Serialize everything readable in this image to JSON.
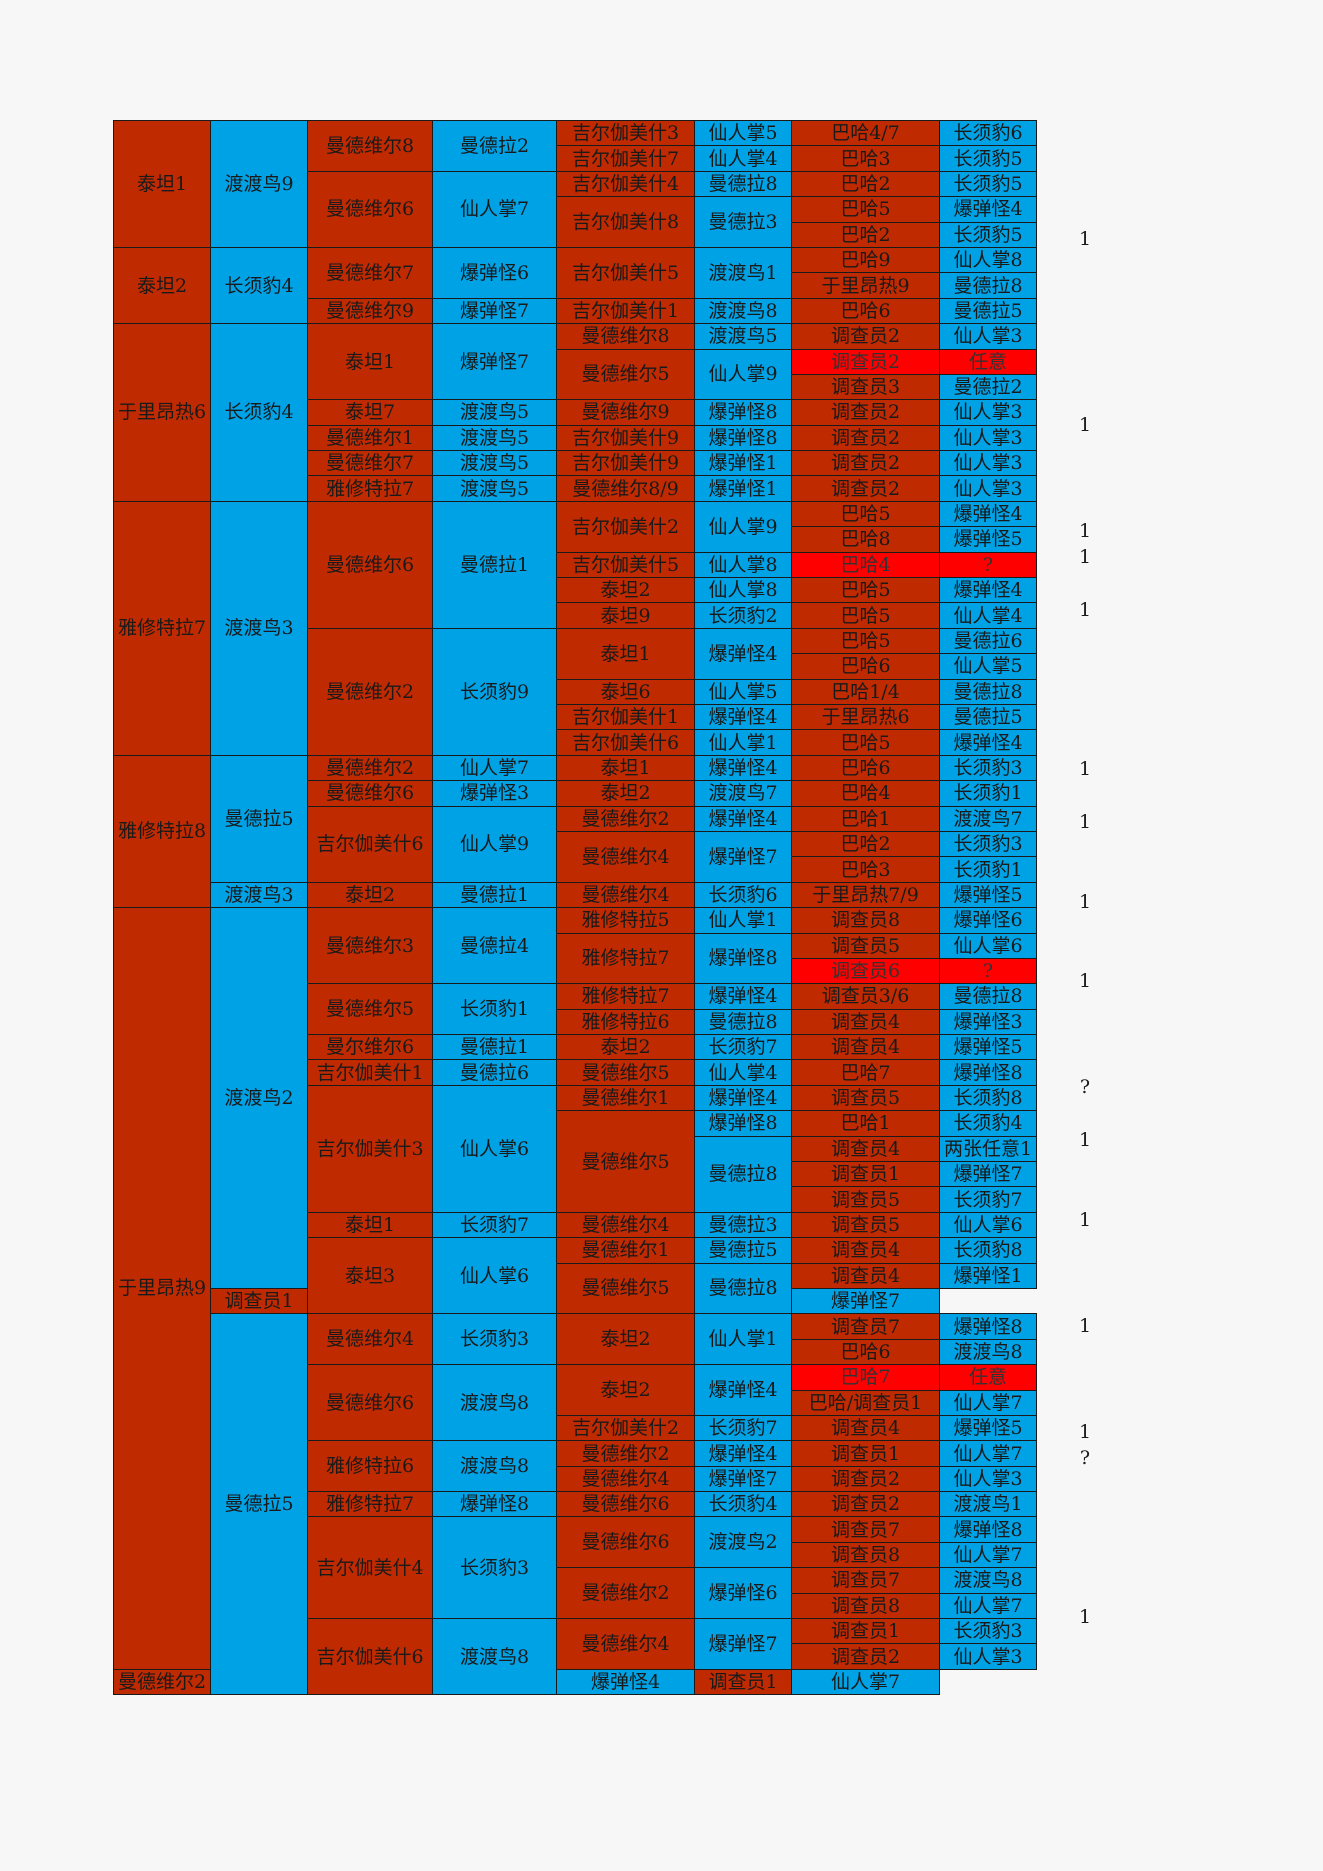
{
  "rows": [
    [
      {
        "t": "泰坦1",
        "rs": 5,
        "c": "r"
      },
      {
        "t": "渡渡鸟9",
        "rs": 5,
        "c": "b"
      },
      {
        "t": "曼德维尔8",
        "rs": 2,
        "c": "r"
      },
      {
        "t": "曼德拉2",
        "rs": 2,
        "c": "b"
      },
      {
        "t": "吉尔伽美什3",
        "c": "r"
      },
      {
        "t": "仙人掌5",
        "c": "b"
      },
      {
        "t": "巴哈4/7",
        "c": "r"
      },
      {
        "t": "长须豹6",
        "c": "b"
      }
    ],
    [
      {
        "t": "吉尔伽美什7",
        "c": "r"
      },
      {
        "t": "仙人掌4",
        "c": "b"
      },
      {
        "t": "巴哈3",
        "c": "r"
      },
      {
        "t": "长须豹5",
        "c": "b"
      }
    ],
    [
      {
        "t": "曼德维尔6",
        "rs": 3,
        "c": "r"
      },
      {
        "t": "仙人掌7",
        "rs": 3,
        "c": "b"
      },
      {
        "t": "吉尔伽美什4",
        "c": "r"
      },
      {
        "t": "曼德拉8",
        "c": "b"
      },
      {
        "t": "巴哈2",
        "c": "r"
      },
      {
        "t": "长须豹5",
        "c": "b"
      }
    ],
    [
      {
        "t": "吉尔伽美什8",
        "rs": 2,
        "c": "r"
      },
      {
        "t": "曼德拉3",
        "rs": 2,
        "c": "b"
      },
      {
        "t": "巴哈5",
        "c": "r"
      },
      {
        "t": "爆弹怪4",
        "c": "b"
      }
    ],
    [
      {
        "t": "巴哈2",
        "c": "r"
      },
      {
        "t": "长须豹5",
        "c": "b"
      }
    ],
    [
      {
        "t": "泰坦2",
        "rs": 3,
        "c": "r"
      },
      {
        "t": "长须豹4",
        "rs": 3,
        "c": "b"
      },
      {
        "t": "曼德维尔7",
        "rs": 2,
        "c": "r"
      },
      {
        "t": "爆弹怪6",
        "rs": 2,
        "c": "b"
      },
      {
        "t": "吉尔伽美什5",
        "rs": 2,
        "c": "r"
      },
      {
        "t": "渡渡鸟1",
        "rs": 2,
        "c": "b"
      },
      {
        "t": "巴哈9",
        "c": "r"
      },
      {
        "t": "仙人掌8",
        "c": "b"
      }
    ],
    [
      {
        "t": "于里昂热9",
        "c": "r"
      },
      {
        "t": "曼德拉8",
        "c": "b"
      }
    ],
    [
      {
        "t": "曼德维尔9",
        "c": "r"
      },
      {
        "t": "爆弹怪7",
        "c": "b"
      },
      {
        "t": "吉尔伽美什1",
        "c": "r"
      },
      {
        "t": "渡渡鸟8",
        "c": "b"
      },
      {
        "t": "巴哈6",
        "c": "r"
      },
      {
        "t": "曼德拉5",
        "c": "b"
      }
    ],
    [
      {
        "t": "于里昂热6",
        "rs": 7,
        "c": "r"
      },
      {
        "t": "长须豹4",
        "rs": 7,
        "c": "b"
      },
      {
        "t": "泰坦1",
        "rs": 3,
        "c": "r"
      },
      {
        "t": "爆弹怪7",
        "rs": 3,
        "c": "b"
      },
      {
        "t": "曼德维尔8",
        "c": "r"
      },
      {
        "t": "渡渡鸟5",
        "c": "b"
      },
      {
        "t": "调查员2",
        "c": "r"
      },
      {
        "t": "仙人掌3",
        "c": "b"
      }
    ],
    [
      {
        "t": "曼德维尔5",
        "rs": 2,
        "c": "r"
      },
      {
        "t": "仙人掌9",
        "rs": 2,
        "c": "b"
      },
      {
        "t": "调查员2",
        "c": "x"
      },
      {
        "t": "任意",
        "c": "x"
      }
    ],
    [
      {
        "t": "调查员3",
        "c": "r"
      },
      {
        "t": "曼德拉2",
        "c": "b"
      }
    ],
    [
      {
        "t": "泰坦7",
        "c": "r"
      },
      {
        "t": "渡渡鸟5",
        "c": "b"
      },
      {
        "t": "曼德维尔9",
        "c": "r"
      },
      {
        "t": "爆弹怪8",
        "c": "b"
      },
      {
        "t": "调查员2",
        "c": "r"
      },
      {
        "t": "仙人掌3",
        "c": "b"
      }
    ],
    [
      {
        "t": "曼德维尔1",
        "c": "r"
      },
      {
        "t": "渡渡鸟5",
        "c": "b"
      },
      {
        "t": "吉尔伽美什9",
        "c": "r"
      },
      {
        "t": "爆弹怪8",
        "c": "b"
      },
      {
        "t": "调查员2",
        "c": "r"
      },
      {
        "t": "仙人掌3",
        "c": "b"
      }
    ],
    [
      {
        "t": "曼德维尔7",
        "c": "r"
      },
      {
        "t": "渡渡鸟5",
        "c": "b"
      },
      {
        "t": "吉尔伽美什9",
        "c": "r"
      },
      {
        "t": "爆弹怪1",
        "c": "b"
      },
      {
        "t": "调查员2",
        "c": "r"
      },
      {
        "t": "仙人掌3",
        "c": "b"
      }
    ],
    [
      {
        "t": "雅修特拉7",
        "c": "r"
      },
      {
        "t": "渡渡鸟5",
        "c": "b"
      },
      {
        "t": "曼德维尔8/9",
        "c": "r"
      },
      {
        "t": "爆弹怪1",
        "c": "b"
      },
      {
        "t": "调查员2",
        "c": "r"
      },
      {
        "t": "仙人掌3",
        "c": "b"
      }
    ],
    [
      {
        "t": "雅修特拉7",
        "rs": 10,
        "c": "r"
      },
      {
        "t": "渡渡鸟3",
        "rs": 10,
        "c": "b"
      },
      {
        "t": "曼德维尔6",
        "rs": 5,
        "c": "r"
      },
      {
        "t": "曼德拉1",
        "rs": 5,
        "c": "b"
      },
      {
        "t": "吉尔伽美什2",
        "rs": 2,
        "c": "r"
      },
      {
        "t": "仙人掌9",
        "rs": 2,
        "c": "b"
      },
      {
        "t": "巴哈5",
        "c": "r"
      },
      {
        "t": "爆弹怪4",
        "c": "b"
      }
    ],
    [
      {
        "t": "巴哈8",
        "c": "r"
      },
      {
        "t": "爆弹怪5",
        "c": "b"
      }
    ],
    [
      {
        "t": "吉尔伽美什5",
        "c": "r"
      },
      {
        "t": "仙人掌8",
        "c": "b"
      },
      {
        "t": "巴哈4",
        "c": "x"
      },
      {
        "t": "?",
        "c": "x"
      }
    ],
    [
      {
        "t": "泰坦2",
        "c": "r"
      },
      {
        "t": "仙人掌8",
        "c": "b"
      },
      {
        "t": "巴哈5",
        "c": "r"
      },
      {
        "t": "爆弹怪4",
        "c": "b"
      }
    ],
    [
      {
        "t": "泰坦9",
        "c": "r"
      },
      {
        "t": "长须豹2",
        "c": "b"
      },
      {
        "t": "巴哈5",
        "c": "r"
      },
      {
        "t": "仙人掌4",
        "c": "b"
      }
    ],
    [
      {
        "t": "曼德维尔2",
        "rs": 5,
        "c": "r"
      },
      {
        "t": "长须豹9",
        "rs": 5,
        "c": "b"
      },
      {
        "t": "泰坦1",
        "rs": 2,
        "c": "r"
      },
      {
        "t": "爆弹怪4",
        "rs": 2,
        "c": "b"
      },
      {
        "t": "巴哈5",
        "c": "r"
      },
      {
        "t": "曼德拉6",
        "c": "b"
      }
    ],
    [
      {
        "t": "巴哈6",
        "c": "r"
      },
      {
        "t": "仙人掌5",
        "c": "b"
      }
    ],
    [
      {
        "t": "泰坦6",
        "c": "r"
      },
      {
        "t": "仙人掌5",
        "c": "b"
      },
      {
        "t": "巴哈1/4",
        "c": "r"
      },
      {
        "t": "曼德拉8",
        "c": "b"
      }
    ],
    [
      {
        "t": "吉尔伽美什1",
        "c": "r"
      },
      {
        "t": "爆弹怪4",
        "c": "b"
      },
      {
        "t": "于里昂热6",
        "c": "r"
      },
      {
        "t": "曼德拉5",
        "c": "b"
      }
    ],
    [
      {
        "t": "吉尔伽美什6",
        "c": "r"
      },
      {
        "t": "仙人掌1",
        "c": "b"
      },
      {
        "t": "巴哈5",
        "c": "r"
      },
      {
        "t": "爆弹怪4",
        "c": "b"
      }
    ],
    [
      {
        "t": "雅修特拉8",
        "rs": 6,
        "c": "r"
      },
      {
        "t": "曼德拉5",
        "rs": 5,
        "c": "b"
      },
      {
        "t": "曼德维尔2",
        "c": "r"
      },
      {
        "t": "仙人掌7",
        "c": "b"
      },
      {
        "t": "泰坦1",
        "c": "r"
      },
      {
        "t": "爆弹怪4",
        "c": "b"
      },
      {
        "t": "巴哈6",
        "c": "r"
      },
      {
        "t": "长须豹3",
        "c": "b"
      }
    ],
    [
      {
        "t": "曼德维尔6",
        "c": "r"
      },
      {
        "t": "爆弹怪3",
        "c": "b"
      },
      {
        "t": "泰坦2",
        "c": "r"
      },
      {
        "t": "渡渡鸟7",
        "c": "b"
      },
      {
        "t": "巴哈4",
        "c": "r"
      },
      {
        "t": "长须豹1",
        "c": "b"
      }
    ],
    [
      {
        "t": "吉尔伽美什6",
        "rs": 3,
        "c": "r"
      },
      {
        "t": "仙人掌9",
        "rs": 3,
        "c": "b"
      },
      {
        "t": "曼德维尔2",
        "c": "r"
      },
      {
        "t": "爆弹怪4",
        "c": "b"
      },
      {
        "t": "巴哈1",
        "c": "r"
      },
      {
        "t": "渡渡鸟7",
        "c": "b"
      }
    ],
    [
      {
        "t": "曼德维尔4",
        "rs": 2,
        "c": "r"
      },
      {
        "t": "爆弹怪7",
        "rs": 2,
        "c": "b"
      },
      {
        "t": "巴哈2",
        "c": "r"
      },
      {
        "t": "长须豹3",
        "c": "b"
      }
    ],
    [
      {
        "t": "巴哈3",
        "c": "r"
      },
      {
        "t": "长须豹1",
        "c": "b"
      }
    ],
    [
      {
        "t": "渡渡鸟3",
        "c": "b"
      },
      {
        "t": "泰坦2",
        "c": "r"
      },
      {
        "t": "曼德拉1",
        "c": "b"
      },
      {
        "t": "曼德维尔4",
        "c": "r"
      },
      {
        "t": "长须豹6",
        "c": "b"
      },
      {
        "t": "于里昂热7/9",
        "c": "r"
      },
      {
        "t": "爆弹怪5",
        "c": "b"
      }
    ],
    [
      {
        "t": "于里昂热9",
        "rs": 30,
        "c": "r"
      },
      {
        "t": "渡渡鸟2",
        "rs": 15,
        "c": "b"
      },
      {
        "t": "曼德维尔3",
        "rs": 3,
        "c": "r"
      },
      {
        "t": "曼德拉4",
        "rs": 3,
        "c": "b"
      },
      {
        "t": "雅修特拉5",
        "c": "r"
      },
      {
        "t": "仙人掌1",
        "c": "b"
      },
      {
        "t": "调查员8",
        "c": "r"
      },
      {
        "t": "爆弹怪6",
        "c": "b"
      }
    ],
    [
      {
        "t": "雅修特拉7",
        "rs": 2,
        "c": "r"
      },
      {
        "t": "爆弹怪8",
        "rs": 2,
        "c": "b"
      },
      {
        "t": "调查员5",
        "c": "r"
      },
      {
        "t": "仙人掌6",
        "c": "b"
      }
    ],
    [
      {
        "t": "调查员6",
        "c": "x"
      },
      {
        "t": "?",
        "c": "x"
      }
    ],
    [
      {
        "t": "曼德维尔5",
        "rs": 2,
        "c": "r"
      },
      {
        "t": "长须豹1",
        "rs": 2,
        "c": "b"
      },
      {
        "t": "雅修特拉7",
        "c": "r"
      },
      {
        "t": "爆弹怪4",
        "c": "b"
      },
      {
        "t": "调查员3/6",
        "c": "r"
      },
      {
        "t": "曼德拉8",
        "c": "b"
      }
    ],
    [
      {
        "t": "雅修特拉6",
        "c": "r"
      },
      {
        "t": "曼德拉8",
        "c": "b"
      },
      {
        "t": "调查员4",
        "c": "r"
      },
      {
        "t": "爆弹怪3",
        "c": "b"
      }
    ],
    [
      {
        "t": "曼尔维尔6",
        "c": "r"
      },
      {
        "t": "曼德拉1",
        "c": "b"
      },
      {
        "t": "泰坦2",
        "c": "r"
      },
      {
        "t": "长须豹7",
        "c": "b"
      },
      {
        "t": "调查员4",
        "c": "r"
      },
      {
        "t": "爆弹怪5",
        "c": "b"
      }
    ],
    [
      {
        "t": "吉尔伽美什1",
        "c": "r"
      },
      {
        "t": "曼德拉6",
        "c": "b"
      },
      {
        "t": "曼德维尔5",
        "c": "r"
      },
      {
        "t": "仙人掌4",
        "c": "b"
      },
      {
        "t": "巴哈7",
        "c": "r"
      },
      {
        "t": "爆弹怪8",
        "c": "b"
      }
    ],
    [
      {
        "t": "吉尔伽美什3",
        "rs": 5,
        "c": "r"
      },
      {
        "t": "仙人掌6",
        "rs": 5,
        "c": "b"
      },
      {
        "t": "曼德维尔1",
        "c": "r"
      },
      {
        "t": "爆弹怪4",
        "c": "b"
      },
      {
        "t": "调查员5",
        "c": "r"
      },
      {
        "t": "长须豹8",
        "c": "b"
      }
    ],
    [
      {
        "t": "曼德维尔5",
        "rs": 4,
        "c": "r"
      },
      {
        "t": "爆弹怪8",
        "c": "b"
      },
      {
        "t": "巴哈1",
        "c": "r"
      },
      {
        "t": "长须豹4",
        "c": "b"
      }
    ],
    [
      {
        "t": "曼德拉8",
        "rs": 3,
        "c": "b"
      },
      {
        "t": "调查员4",
        "c": "r"
      },
      {
        "t": "两张任意1",
        "c": "b"
      }
    ],
    [
      {
        "t": "调查员1",
        "c": "r"
      },
      {
        "t": "爆弹怪7",
        "c": "b"
      }
    ],
    [
      {
        "t": "调查员5",
        "c": "r"
      },
      {
        "t": "长须豹7",
        "c": "b"
      }
    ],
    [
      {
        "t": "泰坦1",
        "c": "r"
      },
      {
        "t": "长须豹7",
        "c": "b"
      },
      {
        "t": "曼德维尔4",
        "c": "r"
      },
      {
        "t": "曼德拉3",
        "c": "b"
      },
      {
        "t": "调查员5",
        "c": "r"
      },
      {
        "t": "仙人掌6",
        "c": "b"
      }
    ],
    [
      {
        "t": "泰坦3",
        "rs": 3,
        "c": "r"
      },
      {
        "t": "仙人掌6",
        "rs": 3,
        "c": "b"
      },
      {
        "t": "曼德维尔1",
        "c": "r"
      },
      {
        "t": "曼德拉5",
        "c": "b"
      },
      {
        "t": "调查员4",
        "c": "r"
      },
      {
        "t": "长须豹8",
        "c": "b"
      }
    ],
    [
      {
        "t": "曼德维尔5",
        "rs": 2,
        "c": "r"
      },
      {
        "t": "曼德拉8",
        "rs": 2,
        "c": "b"
      },
      {
        "t": "调查员4",
        "c": "r"
      },
      {
        "t": "爆弹怪1",
        "c": "b"
      }
    ],
    [
      {
        "t": "调查员1",
        "c": "r"
      },
      {
        "t": "爆弹怪7",
        "c": "b"
      }
    ],
    [
      {
        "t": "曼德拉5",
        "rs": 15,
        "c": "b"
      },
      {
        "t": "曼德维尔4",
        "rs": 2,
        "c": "r"
      },
      {
        "t": "长须豹3",
        "rs": 2,
        "c": "b"
      },
      {
        "t": "泰坦2",
        "rs": 2,
        "c": "r"
      },
      {
        "t": "仙人掌1",
        "rs": 2,
        "c": "b"
      },
      {
        "t": "调查员7",
        "c": "r"
      },
      {
        "t": "爆弹怪8",
        "c": "b"
      }
    ],
    [
      {
        "t": "巴哈6",
        "c": "r"
      },
      {
        "t": "渡渡鸟8",
        "c": "b"
      }
    ],
    [
      {
        "t": "曼德维尔6",
        "rs": 3,
        "c": "r"
      },
      {
        "t": "渡渡鸟8",
        "rs": 3,
        "c": "b"
      },
      {
        "t": "泰坦2",
        "rs": 2,
        "c": "r"
      },
      {
        "t": "爆弹怪4",
        "rs": 2,
        "c": "b"
      },
      {
        "t": "巴哈7",
        "c": "x"
      },
      {
        "t": "任意",
        "c": "x"
      }
    ],
    [
      {
        "t": "巴哈/调查员1",
        "c": "r"
      },
      {
        "t": "仙人掌7",
        "c": "b"
      }
    ],
    [
      {
        "t": "吉尔伽美什2",
        "c": "r"
      },
      {
        "t": "长须豹7",
        "c": "b"
      },
      {
        "t": "调查员4",
        "c": "r"
      },
      {
        "t": "爆弹怪5",
        "c": "b"
      }
    ],
    [
      {
        "t": "雅修特拉6",
        "rs": 2,
        "c": "r"
      },
      {
        "t": "渡渡鸟8",
        "rs": 2,
        "c": "b"
      },
      {
        "t": "曼德维尔2",
        "c": "r"
      },
      {
        "t": "爆弹怪4",
        "c": "b"
      },
      {
        "t": "调查员1",
        "c": "r"
      },
      {
        "t": "仙人掌7",
        "c": "b"
      }
    ],
    [
      {
        "t": "曼德维尔4",
        "c": "r"
      },
      {
        "t": "爆弹怪7",
        "c": "b"
      },
      {
        "t": "调查员2",
        "c": "r"
      },
      {
        "t": "仙人掌3",
        "c": "b"
      }
    ],
    [
      {
        "t": "雅修特拉7",
        "c": "r"
      },
      {
        "t": "爆弹怪8",
        "c": "b"
      },
      {
        "t": "曼德维尔6",
        "c": "r"
      },
      {
        "t": "长须豹4",
        "c": "b"
      },
      {
        "t": "调查员2",
        "c": "r"
      },
      {
        "t": "渡渡鸟1",
        "c": "b"
      }
    ],
    [
      {
        "t": "吉尔伽美什4",
        "rs": 4,
        "c": "r"
      },
      {
        "t": "长须豹3",
        "rs": 4,
        "c": "b"
      },
      {
        "t": "曼德维尔6",
        "rs": 2,
        "c": "r"
      },
      {
        "t": "渡渡鸟2",
        "rs": 2,
        "c": "b"
      },
      {
        "t": "调查员7",
        "c": "r"
      },
      {
        "t": "爆弹怪8",
        "c": "b"
      }
    ],
    [
      {
        "t": "调查员8",
        "c": "r"
      },
      {
        "t": "仙人掌7",
        "c": "b"
      }
    ],
    [
      {
        "t": "曼德维尔2",
        "rs": 2,
        "c": "r"
      },
      {
        "t": "爆弹怪6",
        "rs": 2,
        "c": "b"
      },
      {
        "t": "调查员7",
        "c": "r"
      },
      {
        "t": "渡渡鸟8",
        "c": "b"
      }
    ],
    [
      {
        "t": "调查员8",
        "c": "r"
      },
      {
        "t": "仙人掌7",
        "c": "b"
      }
    ],
    [
      {
        "t": "吉尔伽美什6",
        "rs": 3,
        "c": "r"
      },
      {
        "t": "渡渡鸟8",
        "rs": 3,
        "c": "b"
      },
      {
        "t": "曼德维尔4",
        "rs": 2,
        "c": "r"
      },
      {
        "t": "爆弹怪7",
        "rs": 2,
        "c": "b"
      },
      {
        "t": "调查员1",
        "c": "r"
      },
      {
        "t": "长须豹3",
        "c": "b"
      }
    ],
    [
      {
        "t": "调查员2",
        "c": "r"
      },
      {
        "t": "仙人掌3",
        "c": "b"
      }
    ],
    [
      {
        "t": "曼德维尔2",
        "c": "r"
      },
      {
        "t": "爆弹怪4",
        "c": "b"
      },
      {
        "t": "调查员1",
        "c": "r"
      },
      {
        "t": "仙人掌7",
        "c": "b"
      }
    ]
  ],
  "side_notes": [
    {
      "row": 4,
      "t": "1"
    },
    {
      "row": 11,
      "t": "1"
    },
    {
      "row": 15,
      "t": "1"
    },
    {
      "row": 16,
      "t": "1"
    },
    {
      "row": 18,
      "t": "1"
    },
    {
      "row": 24,
      "t": "1"
    },
    {
      "row": 26,
      "t": "1"
    },
    {
      "row": 29,
      "t": "1"
    },
    {
      "row": 32,
      "t": "1"
    },
    {
      "row": 36,
      "t": "?"
    },
    {
      "row": 38,
      "t": "1"
    },
    {
      "row": 41,
      "t": "1"
    },
    {
      "row": 45,
      "t": "1"
    },
    {
      "row": 49,
      "t": "1"
    },
    {
      "row": 50,
      "t": "?"
    },
    {
      "row": 56,
      "t": "1"
    }
  ]
}
